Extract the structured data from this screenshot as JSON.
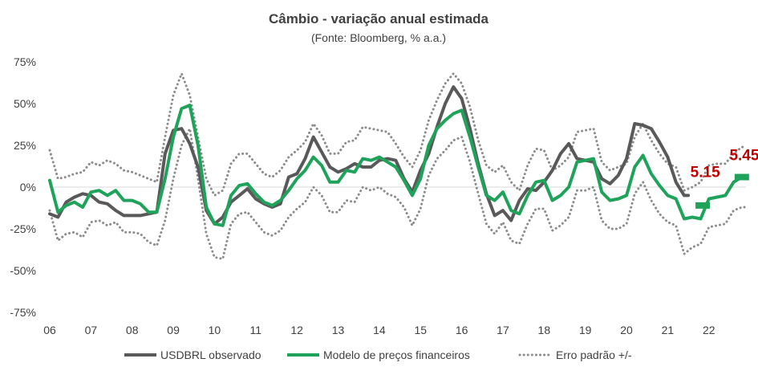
{
  "chart_data": {
    "type": "line",
    "title": "Câmbio - variação anual estimada",
    "subtitle": "(Fonte: Bloomberg, % a.a.)",
    "xlabel": "",
    "ylabel": "",
    "xlim": [
      2006,
      2022.9
    ],
    "ylim": [
      -75,
      75
    ],
    "x_ticks": [
      {
        "x": 2006,
        "label": "06"
      },
      {
        "x": 2007,
        "label": "07"
      },
      {
        "x": 2008,
        "label": "08"
      },
      {
        "x": 2009,
        "label": "09"
      },
      {
        "x": 2010,
        "label": "10"
      },
      {
        "x": 2011,
        "label": "11"
      },
      {
        "x": 2012,
        "label": "12"
      },
      {
        "x": 2013,
        "label": "13"
      },
      {
        "x": 2014,
        "label": "14"
      },
      {
        "x": 2015,
        "label": "15"
      },
      {
        "x": 2016,
        "label": "16"
      },
      {
        "x": 2017,
        "label": "17"
      },
      {
        "x": 2018,
        "label": "18"
      },
      {
        "x": 2019,
        "label": "19"
      },
      {
        "x": 2020,
        "label": "20"
      },
      {
        "x": 2021,
        "label": "21"
      },
      {
        "x": 2022,
        "label": "22"
      }
    ],
    "y_ticks": [
      {
        "y": 75,
        "label": "75%"
      },
      {
        "y": 50,
        "label": "50%"
      },
      {
        "y": 25,
        "label": "25%"
      },
      {
        "y": 0,
        "label": "0%"
      },
      {
        "y": -25,
        "label": "-25%"
      },
      {
        "y": -50,
        "label": "-50%"
      },
      {
        "y": -75,
        "label": "-75%"
      }
    ],
    "grid": false,
    "zero_line": true,
    "legend_position": "bottom",
    "series": [
      {
        "name": "USDBRL observado",
        "color": "#595959",
        "style": "solid",
        "x": [
          2006.0,
          2006.2,
          2006.4,
          2006.6,
          2006.8,
          2007.0,
          2007.2,
          2007.4,
          2007.6,
          2007.8,
          2008.0,
          2008.2,
          2008.4,
          2008.6,
          2008.8,
          2009.0,
          2009.2,
          2009.4,
          2009.6,
          2009.8,
          2010.0,
          2010.2,
          2010.4,
          2010.6,
          2010.8,
          2011.0,
          2011.2,
          2011.4,
          2011.6,
          2011.8,
          2012.0,
          2012.2,
          2012.4,
          2012.6,
          2012.8,
          2013.0,
          2013.2,
          2013.4,
          2013.6,
          2013.8,
          2014.0,
          2014.2,
          2014.4,
          2014.6,
          2014.8,
          2015.0,
          2015.2,
          2015.4,
          2015.6,
          2015.8,
          2016.0,
          2016.2,
          2016.4,
          2016.6,
          2016.8,
          2017.0,
          2017.2,
          2017.4,
          2017.6,
          2017.8,
          2018.0,
          2018.2,
          2018.4,
          2018.6,
          2018.8,
          2019.0,
          2019.2,
          2019.4,
          2019.6,
          2019.8,
          2020.0,
          2020.2,
          2020.4,
          2020.6,
          2020.8,
          2021.0,
          2021.2,
          2021.4,
          2021.5
        ],
        "values": [
          -16,
          -18,
          -9,
          -6,
          -4,
          -5,
          -9,
          -10,
          -14,
          -17,
          -17,
          -17,
          -16,
          -15,
          20,
          34,
          35,
          26,
          12,
          -14,
          -22,
          -18,
          -9,
          -5,
          -1,
          -7,
          -10,
          -12,
          -10,
          6,
          8,
          17,
          30,
          21,
          12,
          9,
          11,
          14,
          12,
          12,
          16,
          17,
          16,
          5,
          -3,
          10,
          20,
          36,
          50,
          60,
          53,
          35,
          14,
          -4,
          -17,
          -14,
          -20,
          -8,
          -1,
          -2,
          3,
          10,
          20,
          26,
          17,
          16,
          15,
          5,
          2,
          7,
          17,
          38,
          37,
          35,
          27,
          18,
          3,
          -5,
          -5
        ]
      },
      {
        "name": "Modelo de preços financeiros",
        "color": "#1fa35a",
        "style": "solid",
        "x": [
          2006.0,
          2006.2,
          2006.4,
          2006.6,
          2006.8,
          2007.0,
          2007.2,
          2007.4,
          2007.6,
          2007.8,
          2008.0,
          2008.2,
          2008.4,
          2008.6,
          2008.8,
          2009.0,
          2009.2,
          2009.4,
          2009.6,
          2009.8,
          2010.0,
          2010.2,
          2010.4,
          2010.6,
          2010.8,
          2011.0,
          2011.2,
          2011.4,
          2011.6,
          2011.8,
          2012.0,
          2012.2,
          2012.4,
          2012.6,
          2012.8,
          2013.0,
          2013.2,
          2013.4,
          2013.6,
          2013.8,
          2014.0,
          2014.2,
          2014.4,
          2014.6,
          2014.8,
          2015.0,
          2015.2,
          2015.4,
          2015.6,
          2015.8,
          2016.0,
          2016.2,
          2016.4,
          2016.6,
          2016.8,
          2017.0,
          2017.2,
          2017.4,
          2017.6,
          2017.8,
          2018.0,
          2018.2,
          2018.4,
          2018.6,
          2018.8,
          2019.0,
          2019.2,
          2019.4,
          2019.6,
          2019.8,
          2020.0,
          2020.2,
          2020.4,
          2020.6,
          2020.8,
          2021.0,
          2021.2,
          2021.4,
          2021.6,
          2021.8,
          2022.0,
          2022.2,
          2022.4,
          2022.6,
          2022.8,
          2022.9
        ],
        "values": [
          4,
          -15,
          -11,
          -9,
          -12,
          -3,
          -2,
          -5,
          -2,
          -8,
          -8,
          -10,
          -15,
          -15,
          5,
          30,
          47,
          49,
          25,
          -12,
          -22,
          -23,
          -5,
          1,
          2,
          -4,
          -9,
          -11,
          -8,
          -2,
          5,
          10,
          18,
          13,
          3,
          3,
          10,
          9,
          17,
          16,
          18,
          15,
          12,
          4,
          -5,
          5,
          25,
          35,
          40,
          44,
          46,
          30,
          12,
          -5,
          -8,
          -3,
          -14,
          -16,
          -5,
          3,
          4,
          -8,
          -5,
          0,
          15,
          16,
          17,
          -3,
          -8,
          -7,
          -5,
          12,
          19,
          8,
          1,
          -5,
          -7,
          -19,
          -18,
          -19,
          -7,
          -6,
          -5,
          3,
          6,
          6
        ]
      },
      {
        "name": "Erro padrão +/-",
        "color": "#8c8c8c",
        "style": "dotted",
        "x": [
          2006.0,
          2006.2,
          2006.4,
          2006.6,
          2006.8,
          2007.0,
          2007.2,
          2007.4,
          2007.6,
          2007.8,
          2008.0,
          2008.2,
          2008.4,
          2008.6,
          2008.8,
          2009.0,
          2009.2,
          2009.4,
          2009.6,
          2009.8,
          2010.0,
          2010.2,
          2010.4,
          2010.6,
          2010.8,
          2011.0,
          2011.2,
          2011.4,
          2011.6,
          2011.8,
          2012.0,
          2012.2,
          2012.4,
          2012.6,
          2012.8,
          2013.0,
          2013.2,
          2013.4,
          2013.6,
          2013.8,
          2014.0,
          2014.2,
          2014.4,
          2014.6,
          2014.8,
          2015.0,
          2015.2,
          2015.4,
          2015.6,
          2015.8,
          2016.0,
          2016.2,
          2016.4,
          2016.6,
          2016.8,
          2017.0,
          2017.2,
          2017.4,
          2017.6,
          2017.8,
          2018.0,
          2018.2,
          2018.4,
          2018.6,
          2018.8,
          2019.0,
          2019.2,
          2019.4,
          2019.6,
          2019.8,
          2020.0,
          2020.2,
          2020.4,
          2020.6,
          2020.8,
          2021.0,
          2021.2,
          2021.4,
          2021.6,
          2021.8,
          2022.0,
          2022.2,
          2022.4,
          2022.6,
          2022.8,
          2022.9
        ],
        "values_upper": [
          22,
          5,
          6,
          8,
          9,
          15,
          13,
          16,
          14,
          10,
          9,
          7,
          5,
          3,
          30,
          55,
          68,
          55,
          30,
          5,
          -5,
          -2,
          14,
          20,
          20,
          14,
          8,
          6,
          10,
          18,
          22,
          27,
          38,
          31,
          20,
          20,
          27,
          28,
          36,
          35,
          34,
          33,
          26,
          18,
          12,
          22,
          40,
          52,
          62,
          68,
          62,
          48,
          28,
          13,
          9,
          13,
          3,
          -2,
          13,
          23,
          22,
          10,
          13,
          18,
          33,
          34,
          35,
          15,
          10,
          12,
          14,
          30,
          38,
          28,
          20,
          14,
          12,
          -2,
          0,
          3,
          13,
          14,
          14,
          20,
          24,
          24
        ],
        "values_lower": [
          -14,
          -32,
          -28,
          -27,
          -30,
          -21,
          -20,
          -23,
          -21,
          -27,
          -27,
          -28,
          -33,
          -35,
          -20,
          5,
          25,
          35,
          5,
          -28,
          -42,
          -43,
          -22,
          -16,
          -15,
          -21,
          -27,
          -29,
          -26,
          -18,
          -13,
          -9,
          0,
          -5,
          -15,
          -15,
          -8,
          -9,
          0,
          -2,
          0,
          -4,
          -6,
          -12,
          -23,
          -13,
          7,
          17,
          22,
          28,
          30,
          15,
          -4,
          -22,
          -28,
          -21,
          -32,
          -34,
          -22,
          -13,
          -13,
          -26,
          -23,
          -18,
          -2,
          -2,
          0,
          -20,
          -25,
          -25,
          -22,
          -4,
          3,
          -8,
          -16,
          -21,
          -23,
          -40,
          -36,
          -34,
          -24,
          -23,
          -22,
          -14,
          -12,
          -12
        ]
      }
    ],
    "markers": [
      {
        "x": 2021.85,
        "y": -11,
        "color": "#1fa35a"
      },
      {
        "x": 2022.8,
        "y": 6,
        "color": "#1fa35a"
      }
    ],
    "annotations": [
      {
        "text": "5.15",
        "x": 2021.55,
        "y": 6,
        "color": "#c00000"
      },
      {
        "text": "5.45",
        "x": 2022.5,
        "y": 16,
        "color": "#c00000"
      }
    ]
  }
}
